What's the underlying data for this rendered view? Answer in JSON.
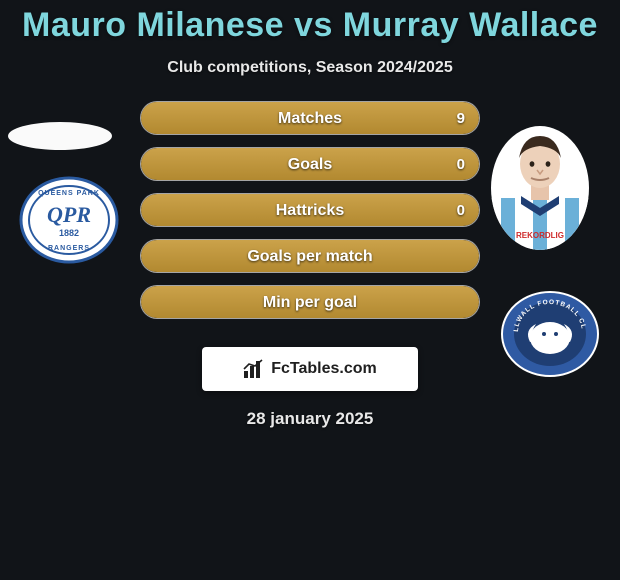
{
  "title": "Mauro Milanese vs Murray Wallace",
  "subtitle": "Club competitions, Season 2024/2025",
  "date": "28 january 2025",
  "fctables_label": "FcTables.com",
  "colors": {
    "title": "#7fd6dd",
    "pill_fill": "#cba24a",
    "club_left": "#2a5aa0",
    "club_right": "#1f3e73",
    "club_right_bg": "#2f5aa3",
    "background": "#111418"
  },
  "pills": [
    {
      "label": "Matches",
      "right_value": "9",
      "fill_side": "right",
      "fill_pct": 100
    },
    {
      "label": "Goals",
      "right_value": "0",
      "fill_side": "full",
      "fill_pct": 100
    },
    {
      "label": "Hattricks",
      "right_value": "0",
      "fill_side": "full",
      "fill_pct": 100
    },
    {
      "label": "Goals per match",
      "right_value": "",
      "fill_side": "full",
      "fill_pct": 100
    },
    {
      "label": "Min per goal",
      "right_value": "",
      "fill_side": "full",
      "fill_pct": 100
    }
  ],
  "left_player": {
    "club": "QPR",
    "club_year": "1882"
  },
  "right_player": {
    "club": "MILLWALL FOOTBALL CLUB"
  }
}
